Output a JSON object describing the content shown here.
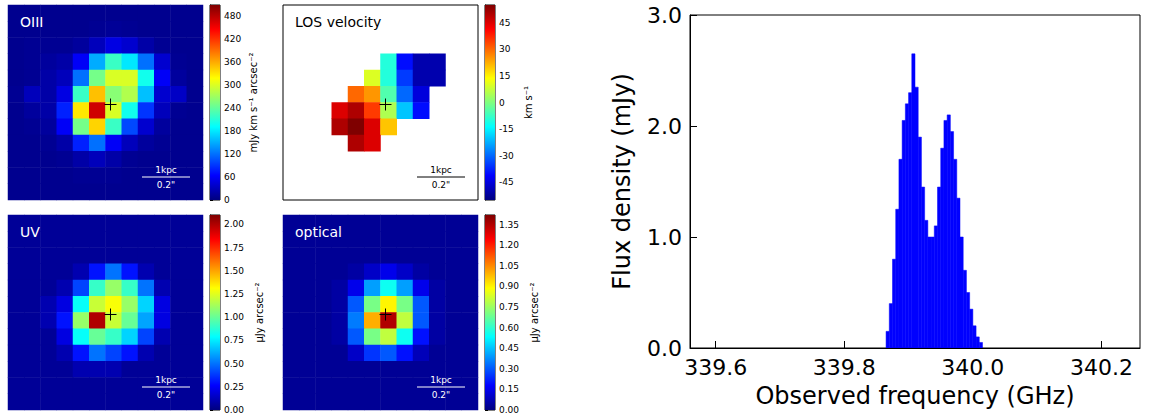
{
  "chart_data": [
    {
      "type": "heatmap",
      "title": "OIII",
      "annotations": [
        "1kpc",
        "0.2\""
      ],
      "colorbar_label": "mJy km s⁻¹ arcsec⁻²",
      "colorbar_range": [
        0,
        510
      ],
      "colorbar_ticks": [
        0,
        60,
        120,
        180,
        240,
        300,
        360,
        420,
        480
      ],
      "cells": [
        [
          8,
          8,
          8,
          8,
          8,
          8,
          8,
          8,
          8,
          8,
          8,
          8
        ],
        [
          8,
          8,
          8,
          8,
          8,
          10,
          12,
          10,
          8,
          8,
          8,
          8
        ],
        [
          8,
          10,
          10,
          10,
          15,
          30,
          50,
          40,
          20,
          10,
          8,
          8
        ],
        [
          8,
          10,
          15,
          20,
          60,
          150,
          220,
          180,
          120,
          40,
          10,
          8
        ],
        [
          8,
          10,
          20,
          30,
          120,
          250,
          300,
          300,
          200,
          60,
          15,
          8
        ],
        [
          10,
          30,
          20,
          50,
          220,
          350,
          260,
          280,
          160,
          40,
          35,
          8
        ],
        [
          8,
          15,
          20,
          80,
          330,
          470,
          300,
          200,
          90,
          30,
          10,
          8
        ],
        [
          8,
          10,
          15,
          60,
          250,
          340,
          220,
          100,
          40,
          15,
          8,
          8
        ],
        [
          8,
          8,
          10,
          20,
          80,
          120,
          60,
          30,
          15,
          10,
          8,
          8
        ],
        [
          8,
          8,
          8,
          10,
          20,
          30,
          20,
          10,
          8,
          8,
          8,
          8
        ],
        [
          8,
          8,
          8,
          8,
          10,
          10,
          10,
          8,
          8,
          8,
          8,
          8
        ],
        [
          8,
          8,
          8,
          8,
          8,
          8,
          8,
          8,
          8,
          8,
          8,
          8
        ]
      ]
    },
    {
      "type": "heatmap",
      "title": "LOS velocity",
      "annotations": [
        "1kpc",
        "0.2\""
      ],
      "colorbar_label": "km s⁻¹",
      "colorbar_range": [
        -55,
        55
      ],
      "colorbar_ticks": [
        -45,
        -30,
        -15,
        0,
        15,
        30,
        45
      ],
      "cells": [
        [
          null,
          null,
          null,
          null,
          null,
          null,
          null,
          null,
          null,
          null,
          null,
          null
        ],
        [
          null,
          null,
          null,
          null,
          null,
          null,
          null,
          null,
          null,
          null,
          null,
          null
        ],
        [
          null,
          null,
          null,
          null,
          null,
          null,
          null,
          null,
          null,
          null,
          null,
          null
        ],
        [
          null,
          null,
          null,
          null,
          null,
          null,
          -10,
          -40,
          -50,
          -50,
          null,
          null
        ],
        [
          null,
          null,
          null,
          null,
          null,
          10,
          -10,
          -35,
          -50,
          -50,
          null,
          null
        ],
        [
          null,
          null,
          null,
          null,
          30,
          25,
          -5,
          -30,
          -45,
          null,
          null,
          null
        ],
        [
          null,
          null,
          null,
          45,
          50,
          35,
          5,
          -20,
          -40,
          null,
          null,
          null
        ],
        [
          null,
          null,
          null,
          50,
          55,
          45,
          20,
          null,
          null,
          null,
          null,
          null
        ],
        [
          null,
          null,
          null,
          null,
          50,
          45,
          null,
          null,
          null,
          null,
          null,
          null
        ],
        [
          null,
          null,
          null,
          null,
          null,
          null,
          null,
          null,
          null,
          null,
          null,
          null
        ],
        [
          null,
          null,
          null,
          null,
          null,
          null,
          null,
          null,
          null,
          null,
          null,
          null
        ],
        [
          null,
          null,
          null,
          null,
          null,
          null,
          null,
          null,
          null,
          null,
          null,
          null
        ]
      ]
    },
    {
      "type": "heatmap",
      "title": "UV",
      "annotations": [
        "1kpc",
        "0.2\""
      ],
      "colorbar_label": "μJy arcsec⁻²",
      "colorbar_range": [
        0,
        2.1
      ],
      "colorbar_ticks": [
        {
          "value": 0,
          "label": "0.00"
        },
        {
          "value": 0.25,
          "label": "0.25"
        },
        {
          "value": 0.5,
          "label": "0.50"
        },
        {
          "value": 0.75,
          "label": "0.75"
        },
        {
          "value": 1,
          "label": "1.00"
        },
        {
          "value": 1.25,
          "label": "1.25"
        },
        {
          "value": 1.5,
          "label": "1.50"
        },
        {
          "value": 1.75,
          "label": "1.75"
        },
        {
          "value": 2,
          "label": "2.00"
        }
      ],
      "cells": [
        [
          0.05,
          0.05,
          0.05,
          0.05,
          0.05,
          0.05,
          0.05,
          0.05,
          0.05,
          0.05,
          0.05,
          0.05
        ],
        [
          0.05,
          0.05,
          0.05,
          0.05,
          0.05,
          0.05,
          0.05,
          0.05,
          0.05,
          0.05,
          0.05,
          0.05
        ],
        [
          0.05,
          0.05,
          0.05,
          0.05,
          0.05,
          0.05,
          0.05,
          0.05,
          0.05,
          0.05,
          0.05,
          0.05
        ],
        [
          0.05,
          0.05,
          0.05,
          0.05,
          0.1,
          0.3,
          0.5,
          0.3,
          0.1,
          0.05,
          0.05,
          0.05
        ],
        [
          0.05,
          0.05,
          0.05,
          0.1,
          0.4,
          0.9,
          1.1,
          0.9,
          0.5,
          0.1,
          0.05,
          0.05
        ],
        [
          0.05,
          0.05,
          0.1,
          0.2,
          0.8,
          1.2,
          1.3,
          1.1,
          0.7,
          0.2,
          0.05,
          0.05
        ],
        [
          0.05,
          0.05,
          0.1,
          0.3,
          1.1,
          2.0,
          1.2,
          1.0,
          0.6,
          0.2,
          0.05,
          0.05
        ],
        [
          0.05,
          0.05,
          0.05,
          0.2,
          0.8,
          1.0,
          0.9,
          0.7,
          0.4,
          0.1,
          0.05,
          0.05
        ],
        [
          0.05,
          0.05,
          0.05,
          0.1,
          0.3,
          0.5,
          0.4,
          0.3,
          0.1,
          0.05,
          0.05,
          0.05
        ],
        [
          0.05,
          0.05,
          0.05,
          0.05,
          0.1,
          0.1,
          0.1,
          0.05,
          0.05,
          0.05,
          0.05,
          0.05
        ],
        [
          0.05,
          0.05,
          0.05,
          0.05,
          0.05,
          0.05,
          0.05,
          0.05,
          0.05,
          0.05,
          0.05,
          0.05
        ],
        [
          0.05,
          0.05,
          0.05,
          0.05,
          0.05,
          0.05,
          0.05,
          0.05,
          0.05,
          0.05,
          0.05,
          0.05
        ]
      ]
    },
    {
      "type": "heatmap",
      "title": "optical",
      "annotations": [
        "1kpc",
        "0.2\""
      ],
      "colorbar_label": "μJy arcsec⁻²",
      "colorbar_range": [
        0,
        1.42
      ],
      "colorbar_ticks": [
        {
          "value": 0,
          "label": "0.00"
        },
        {
          "value": 0.15,
          "label": "0.15"
        },
        {
          "value": 0.3,
          "label": "0.30"
        },
        {
          "value": 0.45,
          "label": "0.45"
        },
        {
          "value": 0.6,
          "label": "0.60"
        },
        {
          "value": 0.75,
          "label": "0.75"
        },
        {
          "value": 0.9,
          "label": "0.90"
        },
        {
          "value": 1.05,
          "label": "1.05"
        },
        {
          "value": 1.2,
          "label": "1.20"
        },
        {
          "value": 1.35,
          "label": "1.35"
        }
      ],
      "cells": [
        [
          0.03,
          0.03,
          0.03,
          0.03,
          0.03,
          0.03,
          0.03,
          0.03,
          0.03,
          0.03,
          0.03,
          0.03
        ],
        [
          0.03,
          0.03,
          0.03,
          0.03,
          0.03,
          0.03,
          0.03,
          0.03,
          0.03,
          0.03,
          0.03,
          0.03
        ],
        [
          0.03,
          0.03,
          0.03,
          0.03,
          0.03,
          0.03,
          0.03,
          0.03,
          0.03,
          0.03,
          0.03,
          0.03
        ],
        [
          0.03,
          0.03,
          0.03,
          0.03,
          0.05,
          0.1,
          0.15,
          0.1,
          0.05,
          0.03,
          0.03,
          0.03
        ],
        [
          0.03,
          0.03,
          0.03,
          0.05,
          0.15,
          0.4,
          0.55,
          0.4,
          0.15,
          0.05,
          0.03,
          0.03
        ],
        [
          0.03,
          0.03,
          0.03,
          0.05,
          0.3,
          0.7,
          0.9,
          0.7,
          0.3,
          0.05,
          0.03,
          0.03
        ],
        [
          0.03,
          0.03,
          0.03,
          0.05,
          0.35,
          1.0,
          1.35,
          0.8,
          0.3,
          0.05,
          0.03,
          0.03
        ],
        [
          0.03,
          0.03,
          0.03,
          0.05,
          0.3,
          0.7,
          0.8,
          0.55,
          0.2,
          0.05,
          0.03,
          0.03
        ],
        [
          0.03,
          0.03,
          0.03,
          0.03,
          0.1,
          0.25,
          0.3,
          0.2,
          0.08,
          0.03,
          0.03,
          0.03
        ],
        [
          0.03,
          0.03,
          0.03,
          0.03,
          0.03,
          0.03,
          0.03,
          0.03,
          0.03,
          0.03,
          0.03,
          0.03
        ],
        [
          0.03,
          0.03,
          0.03,
          0.03,
          0.03,
          0.03,
          0.03,
          0.03,
          0.03,
          0.03,
          0.03,
          0.03
        ],
        [
          0.03,
          0.03,
          0.03,
          0.03,
          0.03,
          0.03,
          0.03,
          0.03,
          0.03,
          0.03,
          0.03,
          0.03
        ]
      ]
    },
    {
      "type": "histogram",
      "x_label": "Observed frequency (GHz)",
      "y_label": "Flux density (mJy)",
      "color": "#0000ff",
      "bins": [
        339.865,
        339.87,
        339.875,
        339.88,
        339.885,
        339.89,
        339.895,
        339.9,
        339.905,
        339.91,
        339.915,
        339.92,
        339.925,
        339.93,
        339.935,
        339.94,
        339.945,
        339.95,
        339.955,
        339.96,
        339.965,
        339.97,
        339.975,
        339.98,
        339.985,
        339.99,
        339.995,
        340.0,
        340.005,
        340.01,
        340.015
      ],
      "values": [
        0.15,
        0.4,
        0.8,
        1.25,
        1.7,
        2.05,
        2.2,
        2.3,
        2.65,
        2.35,
        1.9,
        1.45,
        1.15,
        1.0,
        1.0,
        1.1,
        1.45,
        1.8,
        2.05,
        2.1,
        1.95,
        1.7,
        1.35,
        1.0,
        0.7,
        0.5,
        0.35,
        0.2,
        0.1,
        0.05
      ],
      "xlim": [
        339.56,
        340.26
      ],
      "xticks": [
        339.6,
        339.8,
        {
          "value": 340,
          "label": "340.0"
        },
        340.2
      ],
      "ylim": [
        0,
        3.0
      ],
      "yticks": [
        {
          "value": 0,
          "label": "0.0"
        },
        {
          "value": 1,
          "label": "1.0"
        },
        {
          "value": 2,
          "label": "2.0"
        },
        {
          "value": 3,
          "label": "3.0"
        }
      ]
    }
  ]
}
